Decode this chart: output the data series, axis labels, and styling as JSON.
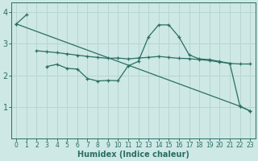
{
  "xlabel": "Humidex (Indice chaleur)",
  "xlim": [
    -0.5,
    23.5
  ],
  "ylim": [
    0,
    4.3
  ],
  "yticks": [
    1,
    2,
    3,
    4
  ],
  "xticks": [
    0,
    1,
    2,
    3,
    4,
    5,
    6,
    7,
    8,
    9,
    10,
    11,
    12,
    13,
    14,
    15,
    16,
    17,
    18,
    19,
    20,
    21,
    22,
    23
  ],
  "bg_color": "#cde8e5",
  "grid_color": "#b8d5d2",
  "line_color": "#2a6e62",
  "line1_x": [
    0,
    1
  ],
  "line1_y": [
    3.63,
    3.92
  ],
  "line2_x": [
    2,
    3,
    4,
    5,
    6,
    7,
    8,
    9,
    10,
    11,
    12,
    13,
    14,
    15,
    16,
    17,
    18,
    19,
    20,
    21,
    22,
    23
  ],
  "line2_y": [
    2.78,
    2.75,
    2.72,
    2.68,
    2.64,
    2.6,
    2.57,
    2.54,
    2.55,
    2.52,
    2.55,
    2.57,
    2.6,
    2.57,
    2.54,
    2.53,
    2.5,
    2.47,
    2.42,
    2.38,
    2.36,
    2.36
  ],
  "line3_x": [
    3,
    4,
    5,
    6,
    7,
    8,
    9,
    10,
    11,
    12,
    13,
    14,
    15,
    16,
    17,
    18,
    19,
    20,
    21,
    22,
    23
  ],
  "line3_y": [
    2.28,
    2.35,
    2.22,
    2.2,
    1.9,
    1.82,
    1.84,
    1.83,
    2.3,
    2.44,
    3.22,
    3.6,
    3.6,
    3.22,
    2.65,
    2.52,
    2.5,
    2.44,
    2.38,
    1.02,
    0.87
  ],
  "line4_x": [
    0,
    22,
    23
  ],
  "line4_y": [
    3.63,
    1.02,
    0.87
  ]
}
